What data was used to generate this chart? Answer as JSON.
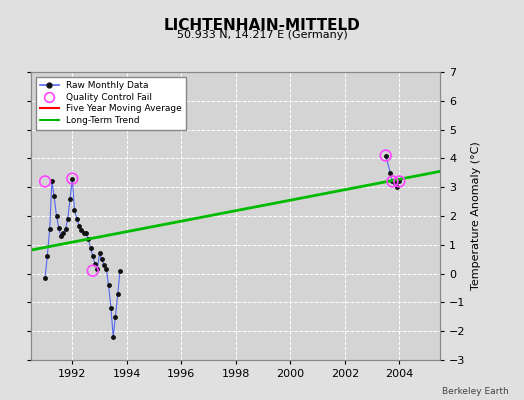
{
  "title": "LICHTENHAIN-MITTELD",
  "subtitle": "50.933 N, 14.217 E (Germany)",
  "ylabel": "Temperature Anomaly (°C)",
  "credit": "Berkeley Earth",
  "xlim": [
    1990.5,
    2005.5
  ],
  "ylim": [
    -3,
    7
  ],
  "yticks": [
    -3,
    -2,
    -1,
    0,
    1,
    2,
    3,
    4,
    5,
    6,
    7
  ],
  "xticks": [
    1992,
    1994,
    1996,
    1998,
    2000,
    2002,
    2004
  ],
  "bg_color": "#e0e0e0",
  "plot_bg_color": "#d4d4d4",
  "raw_segments": [
    {
      "x": [
        1991.0,
        1991.08,
        1991.17,
        1991.25,
        1991.33,
        1991.42,
        1991.5,
        1991.58,
        1991.67,
        1991.75,
        1991.83,
        1991.92,
        1992.0,
        1992.08,
        1992.17,
        1992.25,
        1992.33,
        1992.42,
        1992.5,
        1992.58,
        1992.67,
        1992.75,
        1992.83,
        1992.92,
        1993.0,
        1993.08,
        1993.17,
        1993.25,
        1993.33,
        1993.42,
        1993.5,
        1993.58,
        1993.67,
        1993.75
      ],
      "y": [
        -0.15,
        0.6,
        1.55,
        3.2,
        2.7,
        2.0,
        1.6,
        1.3,
        1.4,
        1.55,
        1.9,
        2.6,
        3.3,
        2.2,
        1.9,
        1.65,
        1.5,
        1.4,
        1.4,
        1.2,
        0.9,
        0.6,
        0.35,
        0.15,
        0.7,
        0.5,
        0.3,
        0.15,
        -0.4,
        -1.2,
        -2.2,
        -1.5,
        -0.7,
        0.1
      ]
    },
    {
      "x": [
        2003.5,
        2003.67,
        2003.75,
        2003.83,
        2003.92,
        2004.0
      ],
      "y": [
        4.1,
        3.5,
        3.2,
        3.15,
        3.0,
        3.2
      ]
    }
  ],
  "raw_dots_x": [
    1991.0,
    1991.08,
    1991.17,
    1991.25,
    1991.33,
    1991.42,
    1991.5,
    1991.58,
    1991.67,
    1991.75,
    1991.83,
    1991.92,
    1992.0,
    1992.08,
    1992.17,
    1992.25,
    1992.33,
    1992.42,
    1992.5,
    1992.58,
    1992.67,
    1992.75,
    1992.83,
    1992.92,
    1993.0,
    1993.08,
    1993.17,
    1993.25,
    1993.33,
    1993.42,
    1993.5,
    1993.58,
    1993.67,
    1993.75,
    2003.5,
    2003.67,
    2003.75,
    2003.83,
    2003.92,
    2004.0
  ],
  "raw_dots_y": [
    -0.15,
    0.6,
    1.55,
    3.2,
    2.7,
    2.0,
    1.6,
    1.3,
    1.4,
    1.55,
    1.9,
    2.6,
    3.3,
    2.2,
    1.9,
    1.65,
    1.5,
    1.4,
    1.4,
    1.2,
    0.9,
    0.6,
    0.35,
    0.15,
    0.7,
    0.5,
    0.3,
    0.15,
    -0.4,
    -1.2,
    -2.2,
    -1.5,
    -0.7,
    0.1,
    4.1,
    3.5,
    3.2,
    3.15,
    3.0,
    3.2
  ],
  "qc_fail_x": [
    1991.0,
    1992.0,
    1992.75,
    2003.5,
    2003.75,
    2004.0
  ],
  "qc_fail_y": [
    3.2,
    3.3,
    0.1,
    4.1,
    3.2,
    3.2
  ],
  "trend_x": [
    1990.5,
    2005.5
  ],
  "trend_y": [
    0.82,
    3.55
  ],
  "raw_color": "#5566ee",
  "dot_color": "#111111",
  "qc_color": "#ff44ff",
  "trend_color": "#00bb00",
  "mavg_color": "#ff0000"
}
